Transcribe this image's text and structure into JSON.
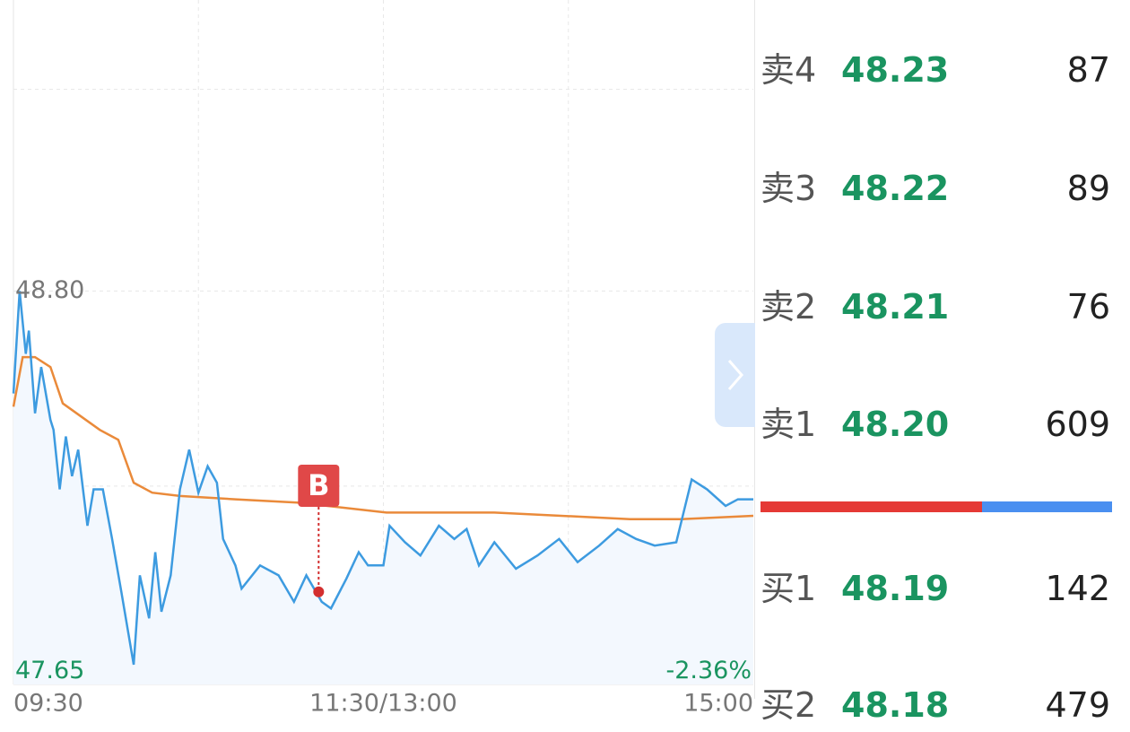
{
  "chart_data": {
    "type": "line",
    "xlim": [
      0,
      240
    ],
    "ylim": [
      47.61,
      49.68
    ],
    "xticks": [
      {
        "value": 0,
        "label": "09:30"
      },
      {
        "value": 120,
        "label": "11:30/13:00"
      },
      {
        "value": 240,
        "label": "15:00"
      }
    ],
    "x_gridlines": [
      60,
      120,
      180
    ],
    "yticks": [
      {
        "value": 48.8,
        "label": "48.80"
      },
      47.65
    ],
    "y_gridlines": [
      49.41,
      48.8,
      48.21
    ],
    "bottom_right_label": "-2.36%",
    "series": [
      {
        "color": "#3d9be0",
        "x": [
          0,
          2,
          4,
          5,
          7,
          9,
          12,
          13,
          15,
          17,
          19,
          21,
          24,
          26,
          29,
          32,
          35,
          39,
          41,
          44,
          46,
          48,
          51,
          54,
          57,
          60,
          63,
          66,
          68,
          72,
          74,
          80,
          86,
          91,
          95,
          100,
          103,
          108,
          112,
          115,
          120,
          122,
          127,
          132,
          138,
          143,
          147,
          151,
          156,
          163,
          170,
          177,
          183,
          190,
          196,
          202,
          208,
          215,
          220,
          225,
          231,
          235,
          240
        ],
        "values": [
          48.49,
          48.8,
          48.61,
          48.68,
          48.43,
          48.57,
          48.41,
          48.38,
          48.2,
          48.36,
          48.24,
          48.32,
          48.09,
          48.2,
          48.2,
          48.05,
          47.89,
          47.67,
          47.94,
          47.81,
          48.01,
          47.83,
          47.94,
          48.2,
          48.32,
          48.19,
          48.27,
          48.22,
          48.05,
          47.97,
          47.9,
          47.97,
          47.94,
          47.86,
          47.94,
          47.86,
          47.84,
          47.93,
          48.01,
          47.97,
          47.97,
          48.09,
          48.04,
          48.0,
          48.09,
          48.05,
          48.08,
          47.97,
          48.04,
          47.96,
          48.0,
          48.05,
          47.98,
          48.03,
          48.08,
          48.05,
          48.03,
          48.04,
          48.23,
          48.2,
          48.15,
          48.17,
          48.17
        ]
      },
      {
        "color": "#ea8a3a",
        "x": [
          0,
          3,
          7,
          12,
          16,
          22,
          28,
          34,
          39,
          45,
          54,
          72,
          92,
          121,
          156,
          200,
          217,
          240
        ],
        "values": [
          48.45,
          48.6,
          48.6,
          48.57,
          48.46,
          48.42,
          48.38,
          48.35,
          48.22,
          48.19,
          48.18,
          48.17,
          48.16,
          48.13,
          48.13,
          48.11,
          48.11,
          48.12
        ]
      }
    ],
    "annotations": [
      {
        "label": "B",
        "x": 99,
        "y": 47.89
      }
    ]
  },
  "order_book": {
    "asks": [
      [
        "卖4",
        "48.23",
        "87"
      ],
      [
        "卖3",
        "48.22",
        "89"
      ],
      [
        "卖2",
        "48.21",
        "76"
      ],
      [
        "卖1",
        "48.20",
        "609"
      ]
    ],
    "bids": [
      [
        "买1",
        "48.19",
        "142"
      ],
      [
        "买2",
        "48.18",
        "479"
      ]
    ]
  }
}
